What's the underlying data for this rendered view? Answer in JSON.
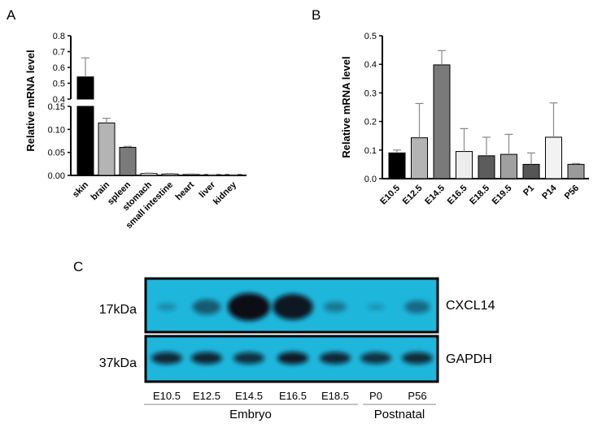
{
  "chart_data": [
    {
      "panel": "A",
      "type": "bar",
      "ylabel": "Relative mRNA level",
      "axis_break": true,
      "ylim_lower": [
        0,
        0.15
      ],
      "ylim_upper": [
        0.4,
        0.8
      ],
      "yticks_lower": [
        "0.00",
        "0.05",
        "0.10",
        "0.15"
      ],
      "yticks_upper": [
        "0.4",
        "0.5",
        "0.6",
        "0.7",
        "0.8"
      ],
      "categories": [
        "skin",
        "brain",
        "spleen",
        "stomach",
        "small intestine",
        "heart",
        "liver",
        "kidney"
      ],
      "values": [
        0.54,
        0.114,
        0.061,
        0.004,
        0.003,
        0.002,
        0.001,
        0.001
      ],
      "errors": [
        0.12,
        0.01,
        0.002,
        0.001,
        0.001,
        0.001,
        0.0005,
        0.0005
      ],
      "colors": [
        "#000000",
        "#b4b4b4",
        "#7a7a7a",
        "#ffffff",
        "#ffffff",
        "#ffffff",
        "#ffffff",
        "#ffffff"
      ]
    },
    {
      "panel": "B",
      "type": "bar",
      "ylabel": "Relative mRNA level",
      "ylim": [
        0,
        0.5
      ],
      "yticks": [
        "0.0",
        "0.1",
        "0.2",
        "0.3",
        "0.4",
        "0.5"
      ],
      "categories": [
        "E10.5",
        "E12.5",
        "E14.5",
        "E16.5",
        "E18.5",
        "E19.5",
        "P1",
        "P14",
        "P56"
      ],
      "values": [
        0.09,
        0.143,
        0.398,
        0.095,
        0.08,
        0.085,
        0.05,
        0.145,
        0.05
      ],
      "errors": [
        0.01,
        0.12,
        0.05,
        0.08,
        0.065,
        0.07,
        0.04,
        0.12,
        0.003
      ],
      "colors": [
        "#000000",
        "#b4b4b4",
        "#7a7a7a",
        "#ececec",
        "#5c5c5c",
        "#a0a0a0",
        "#555555",
        "#f2f2f2",
        "#9a9a9a"
      ]
    }
  ],
  "panel_labels": {
    "a": "A",
    "b": "B",
    "c": "C"
  },
  "blot": {
    "top_band": {
      "size": "17kDa",
      "protein": "CXCL14",
      "intensities": [
        0.12,
        0.45,
        1.0,
        0.92,
        0.25,
        0.06,
        0.35
      ]
    },
    "bottom_band": {
      "size": "37kDa",
      "protein": "GAPDH",
      "intensities": [
        0.78,
        0.8,
        0.72,
        0.88,
        0.78,
        0.7,
        0.75
      ]
    },
    "lanes": [
      "E10.5",
      "E12.5",
      "E14.5",
      "E16.5",
      "E18.5",
      "P0",
      "P56"
    ],
    "group_embryo": "Embryo",
    "group_postnatal": "Postnatal",
    "membrane_color": "#1fb6dc"
  }
}
